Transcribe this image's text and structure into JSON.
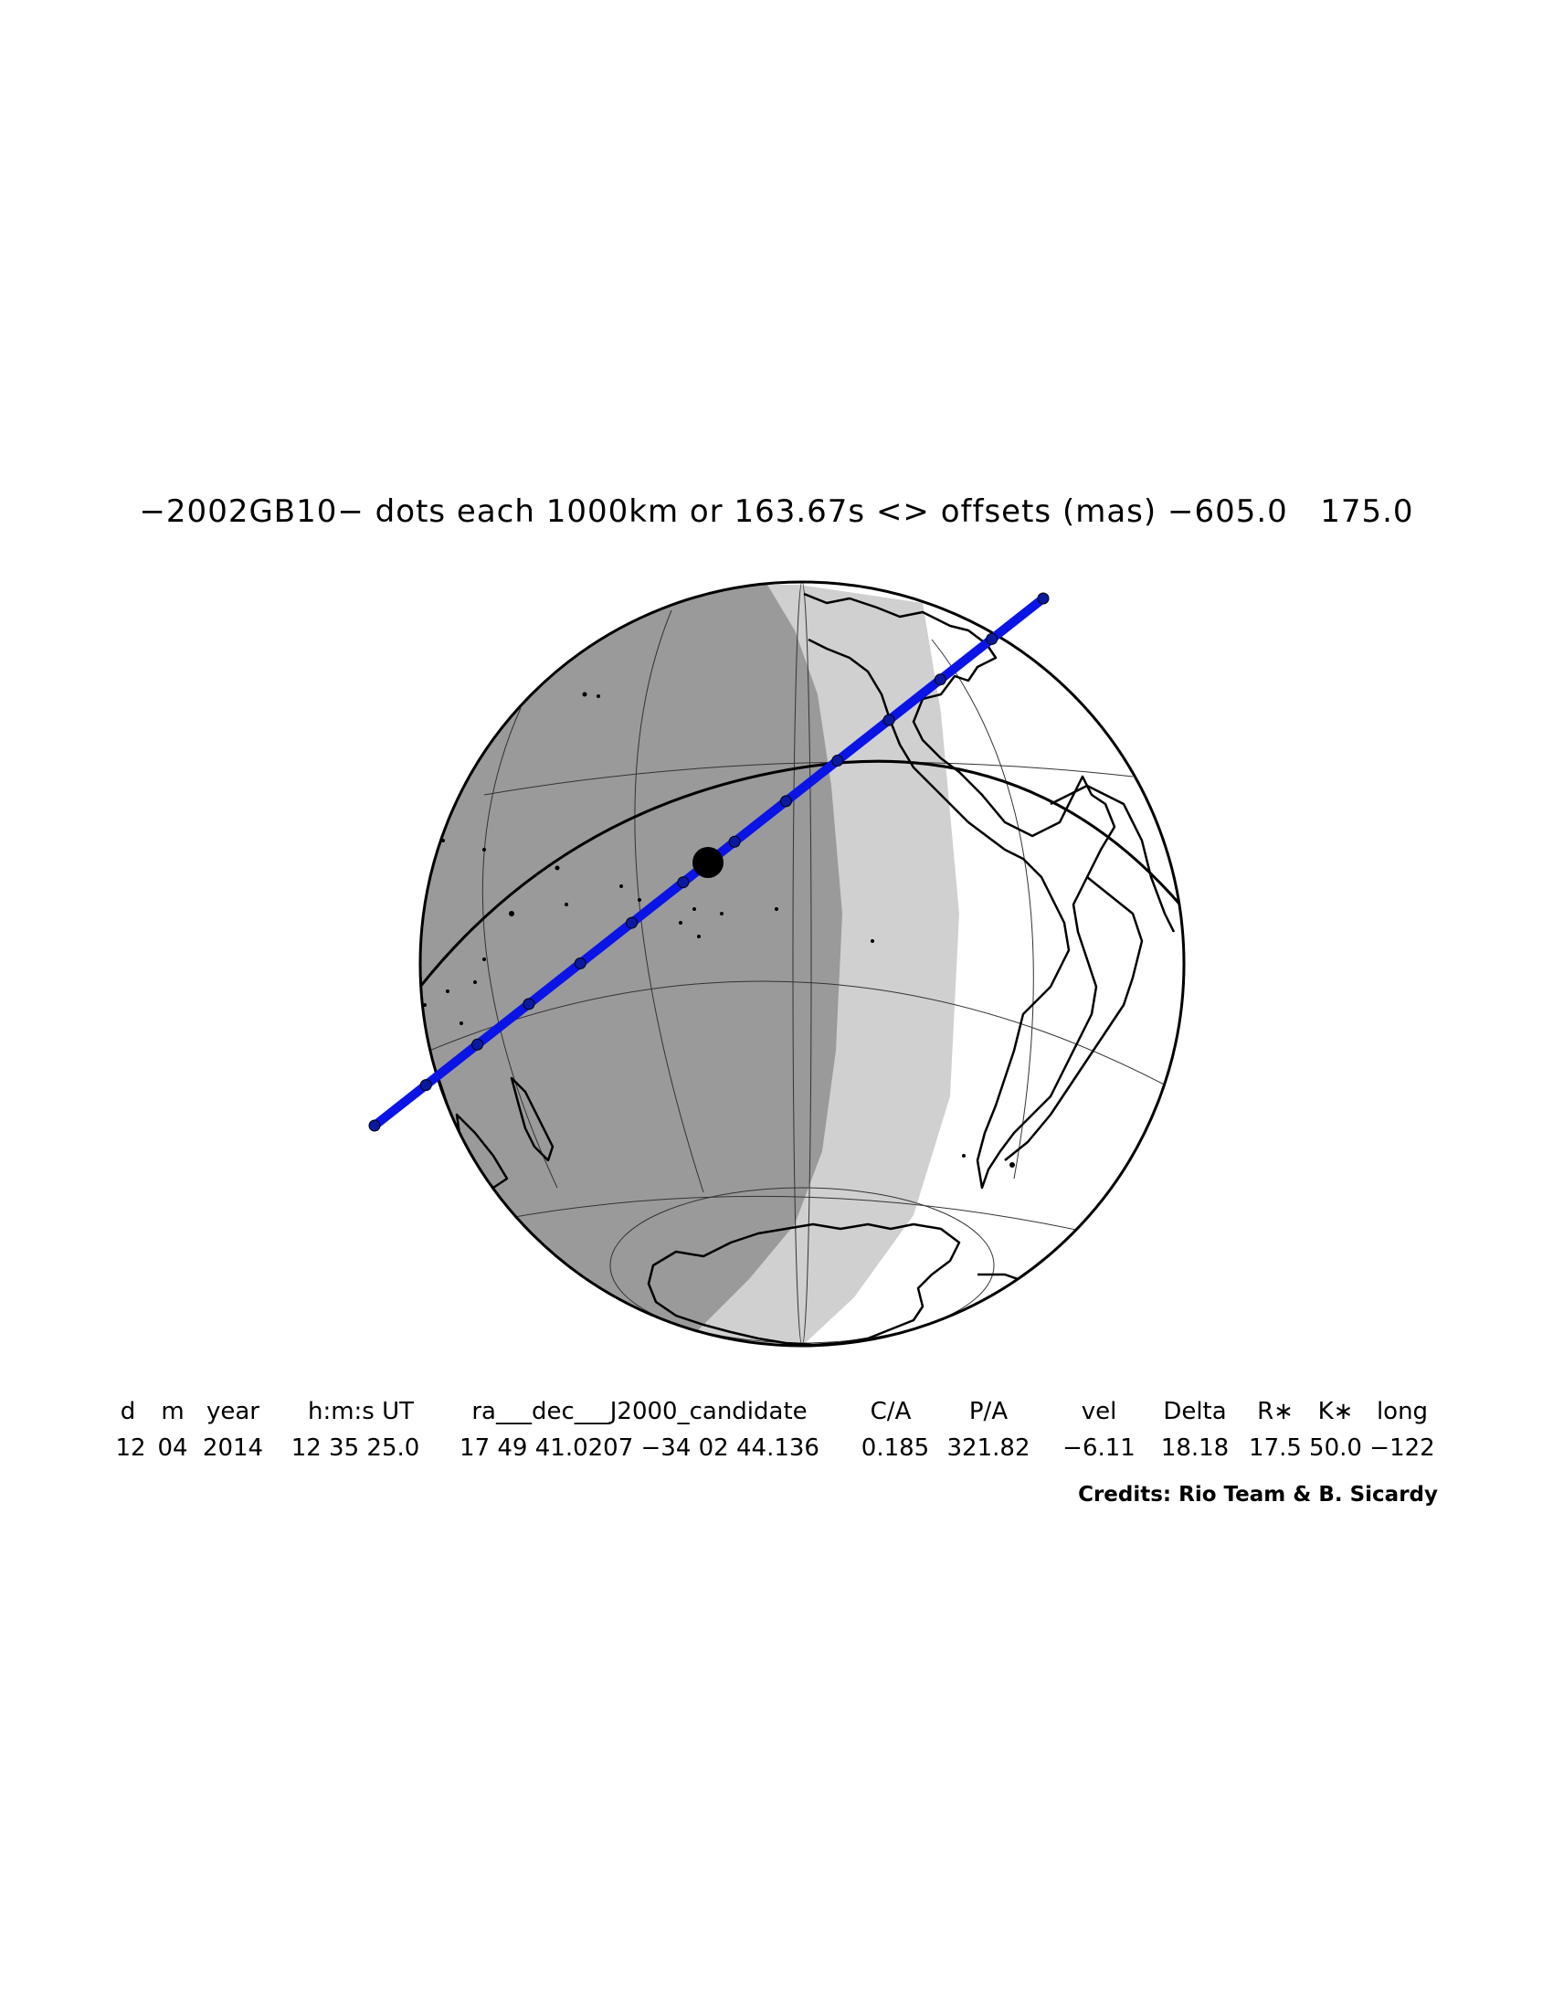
{
  "title": "−2002GB10− dots each 1000km or 163.67s <> offsets (mas) −605.0   175.0",
  "header": {
    "columns": [
      "d",
      "m",
      "year",
      "h:m:s UT",
      "ra___dec___J2000_candidate",
      "C/A",
      "P/A",
      "vel",
      "Delta",
      "R∗",
      "K∗",
      "long"
    ]
  },
  "values": {
    "cells": [
      "12",
      "04",
      "2014",
      "12 35 25.0",
      "17 49 41.0207 −34 02 44.136",
      "0.185",
      "321.82",
      "−6.11",
      "18.18",
      "17.5",
      "50.0",
      "−122"
    ]
  },
  "credits": "Credits: Rio Team & B. Sicardy",
  "colors": {
    "path": "#0a14e6",
    "night": "#9a9a9a",
    "twilight": "#d0d0d0",
    "day": "#ffffff",
    "coast": "#000000"
  },
  "path_dots": 12
}
